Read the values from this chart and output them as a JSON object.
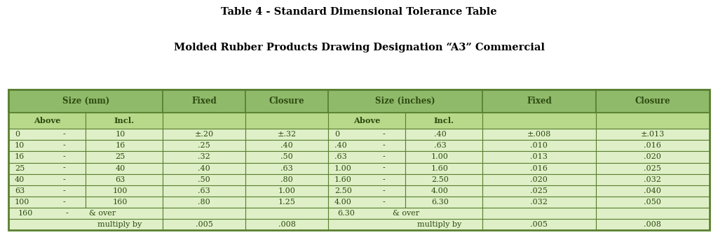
{
  "title_line1": "Table 4 - Standard Dimensional Tolerance Table",
  "title_line2": "Molded Rubber Products Drawing Designation “A3” Commercial",
  "title_fontsize": 10.5,
  "header_bg": "#8fba6a",
  "subheader_bg": "#b8d98a",
  "row_bg": "#dff0c8",
  "row_bg_dark": "#c8e8a8",
  "border_color": "#5a8030",
  "text_color": "#2d4a10",
  "rows_mm": [
    [
      "0",
      "-",
      "10"
    ],
    [
      "10",
      "-",
      "16"
    ],
    [
      "16",
      "-",
      "25"
    ],
    [
      "25",
      "-",
      "40"
    ],
    [
      "40",
      "-",
      "63"
    ],
    [
      "63",
      "-",
      "100"
    ],
    [
      "100",
      "-",
      "160"
    ],
    [
      "160",
      "-",
      "& over"
    ],
    [
      "",
      "multiply by",
      ""
    ]
  ],
  "rows_fixed_mm": [
    "±.20",
    ".25",
    ".32",
    ".40",
    ".50",
    ".63",
    ".80",
    "",
    ".005"
  ],
  "rows_closure_mm": [
    "±.32",
    ".40",
    ".50",
    ".63",
    ".80",
    "1.00",
    "1.25",
    "",
    ".008"
  ],
  "rows_in": [
    [
      "0",
      "-",
      ".40"
    ],
    [
      ".40",
      "-",
      ".63"
    ],
    [
      ".63",
      "-",
      "1.00"
    ],
    [
      "1.00",
      "-",
      "1.60"
    ],
    [
      "1.60",
      "-",
      "2.50"
    ],
    [
      "2.50",
      "-",
      "4.00"
    ],
    [
      "4.00",
      "-",
      "6.30"
    ],
    [
      "6.30",
      "",
      "& over"
    ],
    [
      "",
      "multiply by",
      ""
    ]
  ],
  "rows_fixed_in": [
    "±.008",
    ".010",
    ".013",
    ".016",
    ".020",
    ".025",
    ".032",
    "",
    ".005"
  ],
  "rows_closure_in": [
    "±.013",
    ".016",
    ".020",
    ".025",
    ".032",
    ".040",
    ".050",
    "",
    ".008"
  ]
}
